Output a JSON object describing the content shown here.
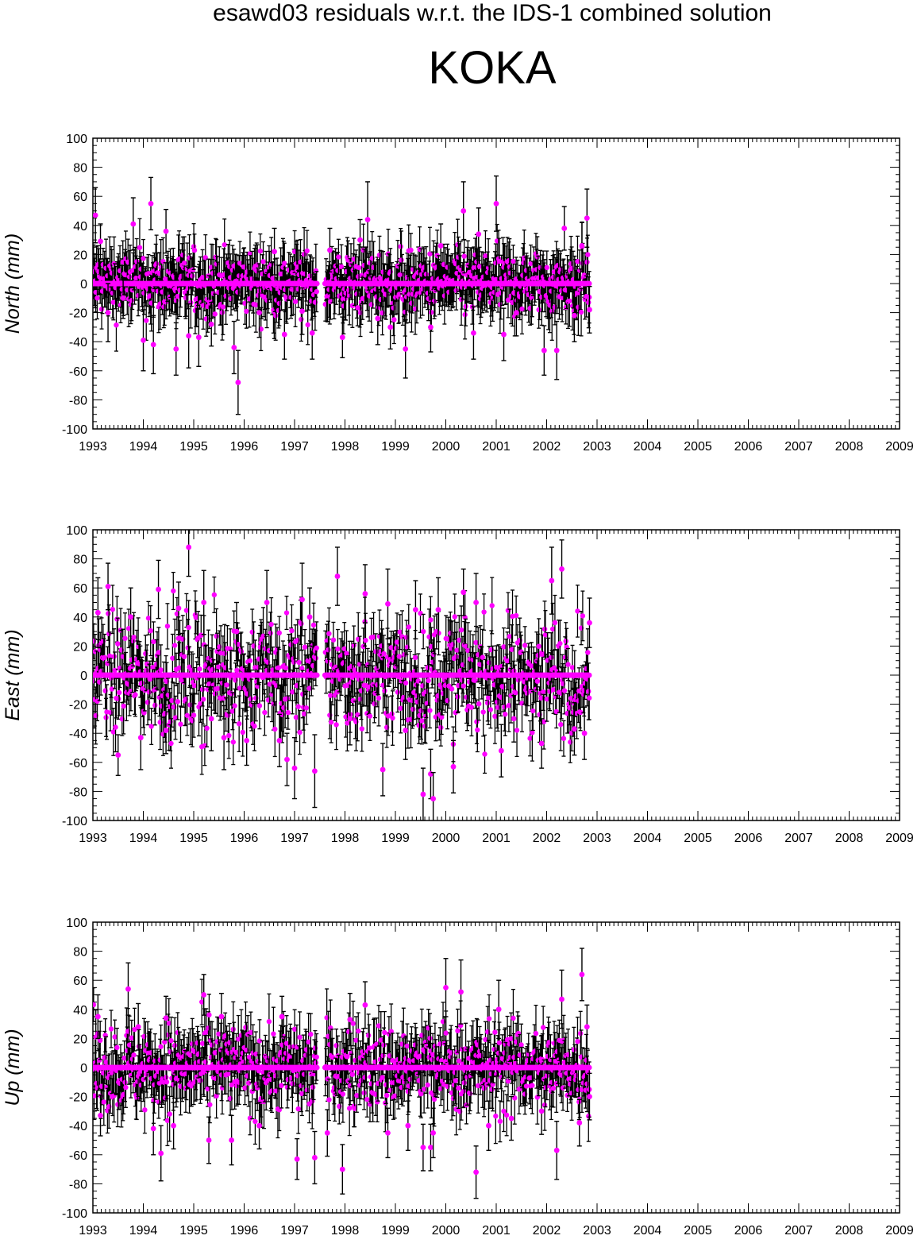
{
  "title": "esawd03 residuals w.r.t. the IDS-1 combined solution",
  "station": "KOKA",
  "colors": {
    "point": "#ff00ff",
    "errorbar": "#000000",
    "frame": "#000000"
  },
  "chart_data": [
    {
      "type": "scatter",
      "ylabel": "North (mm)",
      "xlim": [
        1993,
        2009
      ],
      "ylim": [
        -100,
        100
      ],
      "x_ticks": [
        "1993",
        "1994",
        "1995",
        "1996",
        "1997",
        "1998",
        "1999",
        "2000",
        "2001",
        "2002",
        "2003",
        "2004",
        "2005",
        "2006",
        "2007",
        "2008",
        "2009"
      ],
      "y_ticks": [
        "100",
        "80",
        "60",
        "40",
        "20",
        "0",
        "-20",
        "-40",
        "-60",
        "-80",
        "-100"
      ],
      "grid": false,
      "error_bars": true,
      "data_span": [
        1993.0,
        2002.85
      ],
      "gap": [
        1997.45,
        1997.6
      ],
      "series": [
        {
          "points": [
            {
              "x": 1993.05,
              "y": 47,
              "err": 19
            },
            {
              "x": 1993.15,
              "y": 29,
              "err": 12
            },
            {
              "x": 1993.3,
              "y": -20,
              "err": 20
            },
            {
              "x": 1993.6,
              "y": -10,
              "err": 14
            },
            {
              "x": 1993.8,
              "y": 41,
              "err": 18
            },
            {
              "x": 1994.0,
              "y": -39,
              "err": 21
            },
            {
              "x": 1994.15,
              "y": 55,
              "err": 18
            },
            {
              "x": 1994.2,
              "y": -42,
              "err": 20
            },
            {
              "x": 1994.45,
              "y": 36,
              "err": 15
            },
            {
              "x": 1994.65,
              "y": -45,
              "err": 18
            },
            {
              "x": 1994.9,
              "y": -36,
              "err": 22
            },
            {
              "x": 1995.1,
              "y": -37,
              "err": 20
            },
            {
              "x": 1995.35,
              "y": -28,
              "err": 15
            },
            {
              "x": 1995.8,
              "y": -44,
              "err": 18
            },
            {
              "x": 1995.88,
              "y": -68,
              "err": 22
            },
            {
              "x": 1996.3,
              "y": -20,
              "err": 17
            },
            {
              "x": 1996.6,
              "y": 22,
              "err": 16
            },
            {
              "x": 1996.8,
              "y": -35,
              "err": 17
            },
            {
              "x": 1997.15,
              "y": -19,
              "err": 16
            },
            {
              "x": 1997.35,
              "y": -34,
              "err": 18
            },
            {
              "x": 1997.7,
              "y": 23,
              "err": 15
            },
            {
              "x": 1997.95,
              "y": -37,
              "err": 14
            },
            {
              "x": 1998.3,
              "y": 30,
              "err": 14
            },
            {
              "x": 1998.45,
              "y": 44,
              "err": 26
            },
            {
              "x": 1998.65,
              "y": -24,
              "err": 18
            },
            {
              "x": 1998.9,
              "y": -30,
              "err": 15
            },
            {
              "x": 1999.2,
              "y": -45,
              "err": 20
            },
            {
              "x": 1999.7,
              "y": -30,
              "err": 17
            },
            {
              "x": 1999.9,
              "y": 26,
              "err": 15
            },
            {
              "x": 2000.35,
              "y": 50,
              "err": 20
            },
            {
              "x": 2000.55,
              "y": -34,
              "err": 18
            },
            {
              "x": 2000.65,
              "y": 34,
              "err": 18
            },
            {
              "x": 2001.0,
              "y": 55,
              "err": 19
            },
            {
              "x": 2001.15,
              "y": -35,
              "err": 18
            },
            {
              "x": 2001.4,
              "y": -20,
              "err": 16
            },
            {
              "x": 2001.95,
              "y": -46,
              "err": 17
            },
            {
              "x": 2002.2,
              "y": -46,
              "err": 20
            },
            {
              "x": 2002.35,
              "y": 38,
              "err": 15
            },
            {
              "x": 2002.55,
              "y": -22,
              "err": 18
            },
            {
              "x": 2002.7,
              "y": 26,
              "err": 16
            },
            {
              "x": 2002.8,
              "y": 45,
              "err": 20
            },
            {
              "x": 2002.85,
              "y": -18,
              "err": 16
            }
          ]
        }
      ]
    },
    {
      "type": "scatter",
      "ylabel": "East (mm)",
      "xlim": [
        1993,
        2009
      ],
      "ylim": [
        -100,
        100
      ],
      "x_ticks": [
        "1993",
        "1994",
        "1995",
        "1996",
        "1997",
        "1998",
        "1999",
        "2000",
        "2001",
        "2002",
        "2003",
        "2004",
        "2005",
        "2006",
        "2007",
        "2008",
        "2009"
      ],
      "y_ticks": [
        "100",
        "80",
        "60",
        "40",
        "20",
        "0",
        "-20",
        "-40",
        "-60",
        "-80",
        "-100"
      ],
      "grid": false,
      "error_bars": true,
      "data_span": [
        1993.0,
        2002.85
      ],
      "gap": [
        1997.45,
        1997.6
      ],
      "series": [
        {
          "points": [
            {
              "x": 1993.1,
              "y": 43,
              "err": 24
            },
            {
              "x": 1993.3,
              "y": 61,
              "err": 16
            },
            {
              "x": 1993.5,
              "y": -55,
              "err": 14
            },
            {
              "x": 1993.75,
              "y": 40,
              "err": 20
            },
            {
              "x": 1993.95,
              "y": -43,
              "err": 22
            },
            {
              "x": 1994.3,
              "y": 59,
              "err": 20
            },
            {
              "x": 1994.45,
              "y": -38,
              "err": 16
            },
            {
              "x": 1994.7,
              "y": 46,
              "err": 18
            },
            {
              "x": 1994.9,
              "y": 88,
              "err": 20
            },
            {
              "x": 1995.2,
              "y": 50,
              "err": 22
            },
            {
              "x": 1995.35,
              "y": -30,
              "err": 22
            },
            {
              "x": 1995.6,
              "y": -43,
              "err": 22
            },
            {
              "x": 1995.85,
              "y": 30,
              "err": 20
            },
            {
              "x": 1996.05,
              "y": -45,
              "err": 17
            },
            {
              "x": 1996.45,
              "y": 50,
              "err": 22
            },
            {
              "x": 1996.7,
              "y": -45,
              "err": 18
            },
            {
              "x": 1996.85,
              "y": -58,
              "err": 18
            },
            {
              "x": 1997.0,
              "y": -64,
              "err": 21
            },
            {
              "x": 1997.15,
              "y": 52,
              "err": 25
            },
            {
              "x": 1997.3,
              "y": 40,
              "err": 20
            },
            {
              "x": 1997.4,
              "y": -66,
              "err": 25
            },
            {
              "x": 1997.85,
              "y": 68,
              "err": 20
            },
            {
              "x": 1998.1,
              "y": -30,
              "err": 18
            },
            {
              "x": 1998.4,
              "y": 56,
              "err": 20
            },
            {
              "x": 1998.75,
              "y": -65,
              "err": 18
            },
            {
              "x": 1998.85,
              "y": 49,
              "err": 24
            },
            {
              "x": 1999.2,
              "y": -38,
              "err": 20
            },
            {
              "x": 1999.4,
              "y": 45,
              "err": 20
            },
            {
              "x": 1999.55,
              "y": -82,
              "err": 18
            },
            {
              "x": 1999.7,
              "y": -68,
              "err": 17
            },
            {
              "x": 1999.75,
              "y": -85,
              "err": 18
            },
            {
              "x": 1999.85,
              "y": 45,
              "err": 22
            },
            {
              "x": 2000.15,
              "y": -63,
              "err": 18
            },
            {
              "x": 2000.35,
              "y": 57,
              "err": 16
            },
            {
              "x": 2000.6,
              "y": 50,
              "err": 20
            },
            {
              "x": 2001.1,
              "y": -52,
              "err": 18
            },
            {
              "x": 2001.35,
              "y": -30,
              "err": 16
            },
            {
              "x": 2001.9,
              "y": -47,
              "err": 17
            },
            {
              "x": 2002.1,
              "y": 65,
              "err": 23
            },
            {
              "x": 2002.3,
              "y": 73,
              "err": 20
            },
            {
              "x": 2002.55,
              "y": -37,
              "err": 18
            },
            {
              "x": 2002.75,
              "y": -40,
              "err": 18
            },
            {
              "x": 2002.85,
              "y": 36,
              "err": 17
            }
          ]
        }
      ]
    },
    {
      "type": "scatter",
      "ylabel": "Up (mm)",
      "xlim": [
        1993,
        2009
      ],
      "ylim": [
        -100,
        100
      ],
      "x_ticks": [
        "1993",
        "1994",
        "1995",
        "1996",
        "1997",
        "1998",
        "1999",
        "2000",
        "2001",
        "2002",
        "2003",
        "2004",
        "2005",
        "2006",
        "2007",
        "2008",
        "2009"
      ],
      "y_ticks": [
        "100",
        "80",
        "60",
        "40",
        "20",
        "0",
        "-20",
        "-40",
        "-60",
        "-80",
        "-100"
      ],
      "grid": false,
      "error_bars": true,
      "data_span": [
        1993.0,
        2002.85
      ],
      "gap": [
        1997.45,
        1997.6
      ],
      "series": [
        {
          "points": [
            {
              "x": 1993.1,
              "y": 35,
              "err": 15
            },
            {
              "x": 1993.15,
              "y": -33,
              "err": 14
            },
            {
              "x": 1993.7,
              "y": 54,
              "err": 18
            },
            {
              "x": 1993.9,
              "y": 28,
              "err": 16
            },
            {
              "x": 1994.2,
              "y": -42,
              "err": 18
            },
            {
              "x": 1994.35,
              "y": -59,
              "err": 19
            },
            {
              "x": 1994.45,
              "y": 34,
              "err": 15
            },
            {
              "x": 1994.6,
              "y": -40,
              "err": 16
            },
            {
              "x": 1995.2,
              "y": 50,
              "err": 14
            },
            {
              "x": 1995.3,
              "y": -50,
              "err": 16
            },
            {
              "x": 1995.55,
              "y": 35,
              "err": 16
            },
            {
              "x": 1995.75,
              "y": -50,
              "err": 17
            },
            {
              "x": 1996.3,
              "y": -40,
              "err": 16
            },
            {
              "x": 1996.75,
              "y": 35,
              "err": 14
            },
            {
              "x": 1997.05,
              "y": -63,
              "err": 14
            },
            {
              "x": 1997.4,
              "y": -62,
              "err": 18
            },
            {
              "x": 1997.65,
              "y": -45,
              "err": 16
            },
            {
              "x": 1997.95,
              "y": -70,
              "err": 17
            },
            {
              "x": 1998.1,
              "y": 33,
              "err": 18
            },
            {
              "x": 1998.4,
              "y": 43,
              "err": 16
            },
            {
              "x": 1998.85,
              "y": -45,
              "err": 17
            },
            {
              "x": 1999.25,
              "y": -40,
              "err": 17
            },
            {
              "x": 1999.55,
              "y": -55,
              "err": 16
            },
            {
              "x": 1999.7,
              "y": -55,
              "err": 16
            },
            {
              "x": 1999.75,
              "y": -45,
              "err": 17
            },
            {
              "x": 2000.0,
              "y": 55,
              "err": 20
            },
            {
              "x": 2000.3,
              "y": 52,
              "err": 22
            },
            {
              "x": 2000.6,
              "y": -72,
              "err": 18
            },
            {
              "x": 2000.85,
              "y": -40,
              "err": 17
            },
            {
              "x": 2001.05,
              "y": 40,
              "err": 20
            },
            {
              "x": 2001.3,
              "y": -35,
              "err": 15
            },
            {
              "x": 2001.9,
              "y": -30,
              "err": 16
            },
            {
              "x": 2002.2,
              "y": -57,
              "err": 20
            },
            {
              "x": 2002.3,
              "y": 47,
              "err": 20
            },
            {
              "x": 2002.65,
              "y": -38,
              "err": 16
            },
            {
              "x": 2002.7,
              "y": 64,
              "err": 18
            },
            {
              "x": 2002.8,
              "y": 28,
              "err": 15
            },
            {
              "x": 2002.85,
              "y": -20,
              "err": 16
            }
          ]
        }
      ]
    }
  ]
}
